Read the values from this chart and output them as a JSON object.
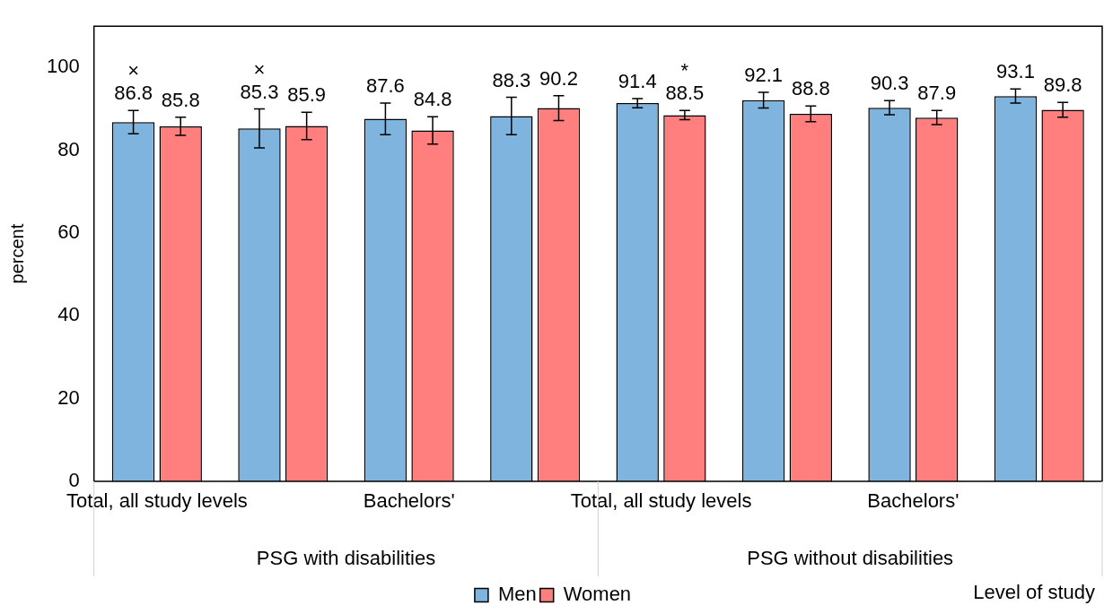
{
  "chart_data": {
    "type": "bar",
    "xlabel": "Level of study",
    "ylabel": "percent",
    "categories": [
      "Total, all study levels",
      null,
      "Bachelors'",
      null,
      "Total, all study levels",
      null,
      "Bachelors'",
      null
    ],
    "series": [
      {
        "name": "Men",
        "color": "#7eb4dd",
        "values": [
          86.8,
          85.3,
          87.6,
          88.3,
          91.4,
          92.1,
          90.3,
          93.1
        ],
        "errors": [
          2.8,
          4.7,
          3.8,
          4.5,
          1.1,
          1.9,
          1.7,
          1.7
        ],
        "value_labels": [
          "×\n86.8",
          "×\n85.3",
          "87.6",
          "88.3",
          "91.4",
          "92.1",
          "90.3",
          "93.1"
        ]
      },
      {
        "name": "Women",
        "color": "#ff7f7f",
        "values": [
          85.8,
          85.9,
          84.8,
          90.2,
          88.5,
          88.8,
          87.9,
          89.8
        ],
        "errors": [
          2.2,
          3.3,
          3.3,
          3.0,
          1.1,
          1.9,
          1.7,
          1.8
        ],
        "value_labels": [
          "85.8",
          "85.9",
          "84.8",
          "90.2",
          "*\n88.5",
          "88.8",
          "87.9",
          "89.8"
        ]
      }
    ],
    "annotations": [
      "PSG with disabilities",
      "PSG without disabilities"
    ],
    "ylim": [
      0,
      110
    ],
    "yticks": [
      0,
      20,
      40,
      60,
      80,
      100
    ],
    "legend": "bottom"
  }
}
